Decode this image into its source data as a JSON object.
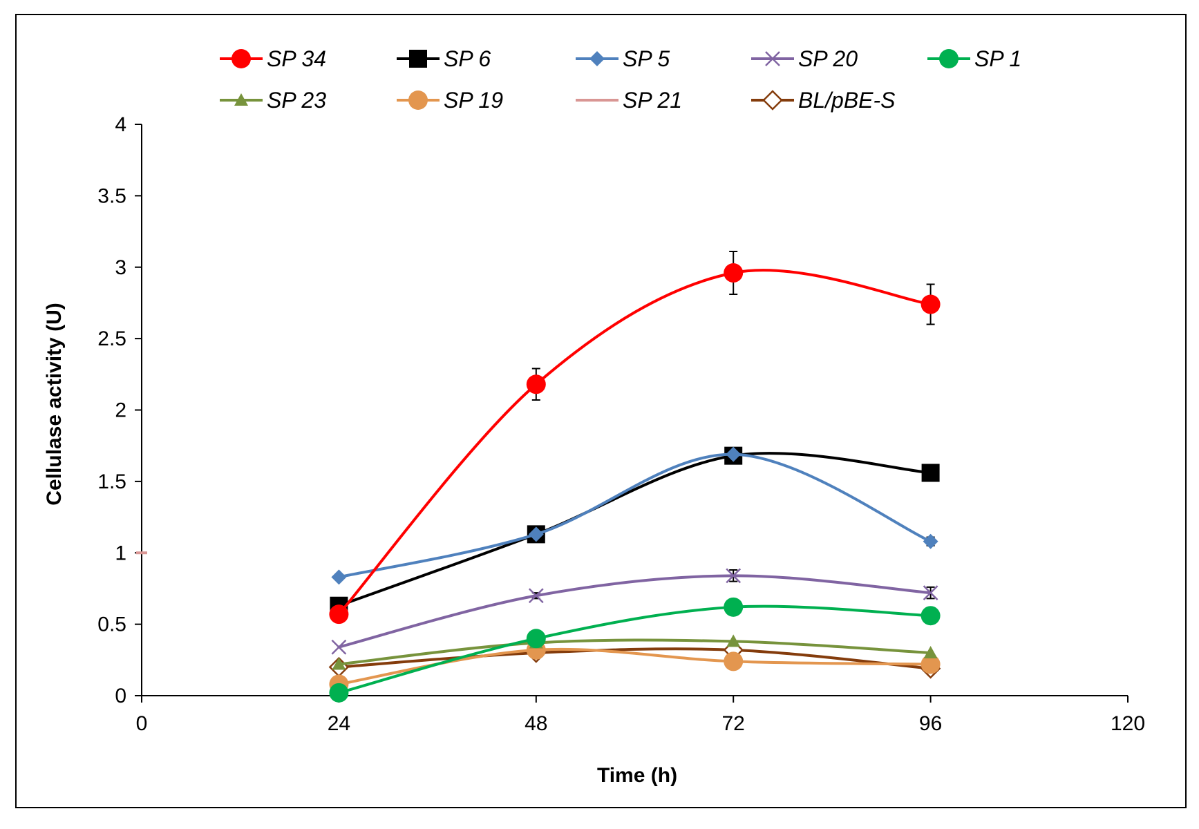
{
  "chart_data": {
    "type": "line",
    "title": "",
    "xlabel": "Time (h)",
    "ylabel": "Cellulase activity (U)",
    "xlim": [
      0,
      120
    ],
    "ylim": [
      0,
      4
    ],
    "xticks": [
      0,
      24,
      48,
      72,
      96,
      120
    ],
    "yticks": [
      0,
      0.5,
      1,
      1.5,
      2,
      2.5,
      3,
      3.5,
      4
    ],
    "grid": false,
    "legend_position": "top",
    "series": [
      {
        "name": "SP 34",
        "color": "#ff0000",
        "marker": "circle",
        "x": [
          24,
          48,
          72,
          96
        ],
        "values": [
          0.57,
          2.18,
          2.96,
          2.74
        ],
        "errors": [
          0,
          0.11,
          0.15,
          0.14
        ]
      },
      {
        "name": "SP 6",
        "color": "#000000",
        "marker": "square",
        "x": [
          24,
          48,
          72,
          96
        ],
        "values": [
          0.63,
          1.13,
          1.68,
          1.56
        ],
        "errors": [
          0,
          0.04,
          0.05,
          0.04
        ]
      },
      {
        "name": "SP 5",
        "color": "#4f81bd",
        "marker": "diamond",
        "x": [
          24,
          48,
          72,
          96
        ],
        "values": [
          0.83,
          1.13,
          1.69,
          1.08
        ],
        "errors": [
          0,
          0.03,
          0.04,
          0.03
        ]
      },
      {
        "name": "SP 20",
        "color": "#8064a2",
        "marker": "x",
        "x": [
          24,
          48,
          72,
          96
        ],
        "values": [
          0.34,
          0.7,
          0.84,
          0.72
        ],
        "errors": [
          0,
          0.02,
          0.04,
          0.04
        ]
      },
      {
        "name": "SP 1",
        "color": "#00b050",
        "marker": "circle",
        "x": [
          24,
          48,
          72,
          96
        ],
        "values": [
          0.02,
          0.4,
          0.62,
          0.56
        ],
        "errors": [
          0,
          0,
          0,
          0
        ]
      },
      {
        "name": "SP 23",
        "color": "#77933c",
        "marker": "triangle",
        "x": [
          24,
          48,
          72,
          96
        ],
        "values": [
          0.22,
          0.37,
          0.38,
          0.3
        ],
        "errors": [
          0,
          0,
          0,
          0
        ]
      },
      {
        "name": "SP 19",
        "color": "#e3964f",
        "marker": "circle",
        "x": [
          24,
          48,
          72,
          96
        ],
        "values": [
          0.08,
          0.32,
          0.24,
          0.22
        ],
        "errors": [
          0,
          0,
          0,
          0
        ]
      },
      {
        "name": "SP 21",
        "color": "#d99694",
        "marker": "none",
        "x": [
          0
        ],
        "values": [
          1.0
        ],
        "errors": [
          0
        ]
      },
      {
        "name": "BL/pBE-S",
        "color": "#843c0c",
        "marker": "open-diamond",
        "x": [
          24,
          48,
          72,
          96
        ],
        "values": [
          0.2,
          0.3,
          0.32,
          0.19
        ],
        "errors": [
          0,
          0,
          0,
          0
        ]
      }
    ]
  }
}
